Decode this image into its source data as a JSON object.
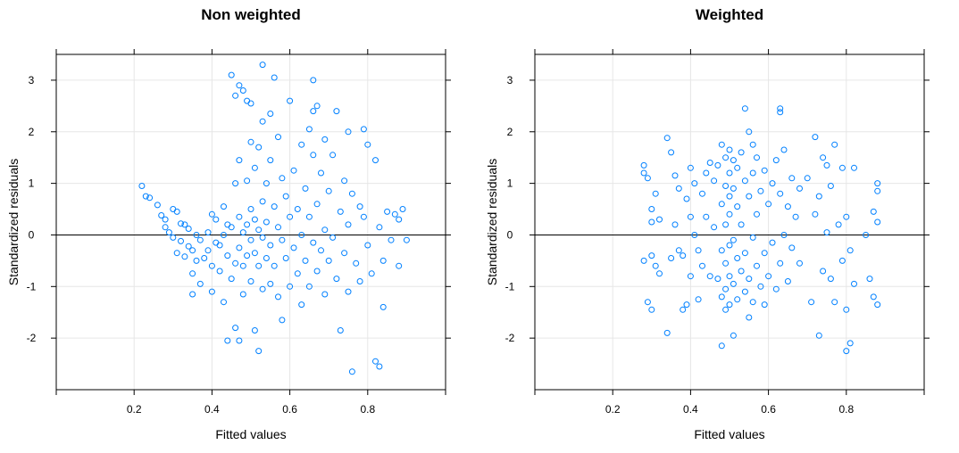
{
  "chart_data": [
    {
      "type": "scatter",
      "title": "Non weighted",
      "xlabel": "Fitted values",
      "ylabel": "Standardized residuals",
      "xlim": [
        0.0,
        1.0
      ],
      "ylim": [
        -3.0,
        3.5
      ],
      "xticks": [
        0.2,
        0.4,
        0.6,
        0.8
      ],
      "yticks": [
        -2,
        -1,
        0,
        1,
        2,
        3
      ],
      "grid": true,
      "reference_line_y": 0,
      "color": "#0080ff",
      "points": [
        [
          0.22,
          0.95
        ],
        [
          0.23,
          0.75
        ],
        [
          0.24,
          0.72
        ],
        [
          0.26,
          0.58
        ],
        [
          0.27,
          0.38
        ],
        [
          0.28,
          0.3
        ],
        [
          0.28,
          0.15
        ],
        [
          0.29,
          0.05
        ],
        [
          0.3,
          0.5
        ],
        [
          0.3,
          -0.05
        ],
        [
          0.31,
          0.45
        ],
        [
          0.31,
          -0.35
        ],
        [
          0.32,
          0.22
        ],
        [
          0.32,
          -0.12
        ],
        [
          0.33,
          0.2
        ],
        [
          0.33,
          -0.42
        ],
        [
          0.34,
          0.12
        ],
        [
          0.34,
          -0.22
        ],
        [
          0.35,
          -0.3
        ],
        [
          0.35,
          -0.75
        ],
        [
          0.35,
          -1.15
        ],
        [
          0.36,
          0.0
        ],
        [
          0.36,
          -0.5
        ],
        [
          0.37,
          -0.1
        ],
        [
          0.37,
          -0.95
        ],
        [
          0.38,
          -0.45
        ],
        [
          0.39,
          0.05
        ],
        [
          0.39,
          -0.3
        ],
        [
          0.4,
          -0.6
        ],
        [
          0.4,
          -1.1
        ],
        [
          0.4,
          0.4
        ],
        [
          0.41,
          0.3
        ],
        [
          0.41,
          -0.15
        ],
        [
          0.42,
          -0.2
        ],
        [
          0.42,
          -0.7
        ],
        [
          0.43,
          0.0
        ],
        [
          0.43,
          0.55
        ],
        [
          0.43,
          -1.3
        ],
        [
          0.44,
          0.2
        ],
        [
          0.44,
          -0.4
        ],
        [
          0.44,
          -2.05
        ],
        [
          0.45,
          3.1
        ],
        [
          0.45,
          0.15
        ],
        [
          0.45,
          -0.85
        ],
        [
          0.46,
          2.7
        ],
        [
          0.46,
          1.0
        ],
        [
          0.46,
          -0.55
        ],
        [
          0.46,
          -1.8
        ],
        [
          0.47,
          2.9
        ],
        [
          0.47,
          1.45
        ],
        [
          0.47,
          0.35
        ],
        [
          0.47,
          -0.25
        ],
        [
          0.47,
          -2.05
        ],
        [
          0.48,
          2.8
        ],
        [
          0.48,
          0.05
        ],
        [
          0.48,
          -0.6
        ],
        [
          0.48,
          -1.15
        ],
        [
          0.49,
          2.6
        ],
        [
          0.49,
          1.05
        ],
        [
          0.49,
          0.2
        ],
        [
          0.49,
          -0.4
        ],
        [
          0.5,
          2.55
        ],
        [
          0.5,
          1.8
        ],
        [
          0.5,
          0.5
        ],
        [
          0.5,
          -0.1
        ],
        [
          0.5,
          -0.9
        ],
        [
          0.51,
          1.3
        ],
        [
          0.51,
          0.3
        ],
        [
          0.51,
          -0.35
        ],
        [
          0.51,
          -1.85
        ],
        [
          0.52,
          1.7
        ],
        [
          0.52,
          0.1
        ],
        [
          0.52,
          -0.6
        ],
        [
          0.52,
          -2.25
        ],
        [
          0.53,
          3.3
        ],
        [
          0.53,
          2.2
        ],
        [
          0.53,
          0.65
        ],
        [
          0.53,
          -0.05
        ],
        [
          0.53,
          -1.05
        ],
        [
          0.54,
          1.0
        ],
        [
          0.54,
          0.25
        ],
        [
          0.54,
          -0.45
        ],
        [
          0.55,
          2.35
        ],
        [
          0.55,
          1.45
        ],
        [
          0.55,
          -0.2
        ],
        [
          0.55,
          -0.95
        ],
        [
          0.56,
          3.05
        ],
        [
          0.56,
          0.55
        ],
        [
          0.56,
          -0.6
        ],
        [
          0.57,
          1.9
        ],
        [
          0.57,
          0.15
        ],
        [
          0.57,
          -1.2
        ],
        [
          0.58,
          1.1
        ],
        [
          0.58,
          -0.1
        ],
        [
          0.58,
          -1.65
        ],
        [
          0.59,
          0.75
        ],
        [
          0.59,
          -0.45
        ],
        [
          0.6,
          2.6
        ],
        [
          0.6,
          0.35
        ],
        [
          0.6,
          -1.0
        ],
        [
          0.61,
          1.25
        ],
        [
          0.61,
          -0.25
        ],
        [
          0.62,
          0.5
        ],
        [
          0.62,
          -0.75
        ],
        [
          0.63,
          1.75
        ],
        [
          0.63,
          0.0
        ],
        [
          0.63,
          -1.35
        ],
        [
          0.64,
          0.9
        ],
        [
          0.64,
          -0.5
        ],
        [
          0.65,
          2.05
        ],
        [
          0.65,
          0.35
        ],
        [
          0.65,
          -1.0
        ],
        [
          0.66,
          3.0
        ],
        [
          0.66,
          2.4
        ],
        [
          0.66,
          1.55
        ],
        [
          0.66,
          -0.15
        ],
        [
          0.67,
          2.5
        ],
        [
          0.67,
          0.6
        ],
        [
          0.67,
          -0.7
        ],
        [
          0.68,
          1.2
        ],
        [
          0.68,
          -0.3
        ],
        [
          0.69,
          1.85
        ],
        [
          0.69,
          0.1
        ],
        [
          0.69,
          -1.15
        ],
        [
          0.7,
          0.85
        ],
        [
          0.7,
          -0.5
        ],
        [
          0.71,
          1.55
        ],
        [
          0.71,
          -0.05
        ],
        [
          0.72,
          2.4
        ],
        [
          0.72,
          -0.85
        ],
        [
          0.73,
          -1.85
        ],
        [
          0.73,
          0.45
        ],
        [
          0.74,
          1.05
        ],
        [
          0.74,
          -0.35
        ],
        [
          0.75,
          2.0
        ],
        [
          0.75,
          0.2
        ],
        [
          0.75,
          -1.1
        ],
        [
          0.76,
          -2.65
        ],
        [
          0.76,
          0.8
        ],
        [
          0.77,
          -0.55
        ],
        [
          0.78,
          0.55
        ],
        [
          0.78,
          -0.9
        ],
        [
          0.79,
          2.05
        ],
        [
          0.79,
          0.35
        ],
        [
          0.8,
          1.75
        ],
        [
          0.8,
          -0.2
        ],
        [
          0.81,
          -0.75
        ],
        [
          0.82,
          1.45
        ],
        [
          0.82,
          -2.45
        ],
        [
          0.83,
          -2.55
        ],
        [
          0.83,
          0.15
        ],
        [
          0.84,
          -1.4
        ],
        [
          0.84,
          -0.5
        ],
        [
          0.85,
          0.45
        ],
        [
          0.86,
          -0.1
        ],
        [
          0.87,
          0.4
        ],
        [
          0.88,
          0.3
        ],
        [
          0.88,
          -0.6
        ],
        [
          0.89,
          0.5
        ],
        [
          0.9,
          -0.1
        ]
      ]
    },
    {
      "type": "scatter",
      "title": "Weighted",
      "xlabel": "Fitted values",
      "ylabel": "Standardized residuals",
      "xlim": [
        0.0,
        1.0
      ],
      "ylim": [
        -3.0,
        3.5
      ],
      "xticks": [
        0.2,
        0.4,
        0.6,
        0.8
      ],
      "yticks": [
        -2,
        -1,
        0,
        1,
        2,
        3
      ],
      "grid": true,
      "reference_line_y": 0,
      "color": "#0080ff",
      "points": [
        [
          0.28,
          1.35
        ],
        [
          0.28,
          1.2
        ],
        [
          0.28,
          -0.5
        ],
        [
          0.29,
          1.1
        ],
        [
          0.29,
          -1.3
        ],
        [
          0.3,
          0.5
        ],
        [
          0.3,
          0.25
        ],
        [
          0.3,
          -0.4
        ],
        [
          0.3,
          -1.45
        ],
        [
          0.31,
          0.8
        ],
        [
          0.31,
          -0.6
        ],
        [
          0.32,
          0.3
        ],
        [
          0.32,
          -0.75
        ],
        [
          0.34,
          1.88
        ],
        [
          0.34,
          -1.9
        ],
        [
          0.35,
          1.6
        ],
        [
          0.35,
          -0.45
        ],
        [
          0.36,
          1.15
        ],
        [
          0.36,
          0.2
        ],
        [
          0.37,
          0.9
        ],
        [
          0.37,
          -0.3
        ],
        [
          0.38,
          -0.4
        ],
        [
          0.38,
          -1.45
        ],
        [
          0.39,
          0.7
        ],
        [
          0.39,
          -1.35
        ],
        [
          0.4,
          1.3
        ],
        [
          0.4,
          0.35
        ],
        [
          0.4,
          -0.8
        ],
        [
          0.41,
          1.0
        ],
        [
          0.41,
          0.0
        ],
        [
          0.42,
          -0.3
        ],
        [
          0.42,
          -1.25
        ],
        [
          0.43,
          0.8
        ],
        [
          0.43,
          -0.6
        ],
        [
          0.44,
          1.2
        ],
        [
          0.44,
          0.35
        ],
        [
          0.45,
          1.4
        ],
        [
          0.45,
          -0.8
        ],
        [
          0.46,
          1.05
        ],
        [
          0.46,
          0.15
        ],
        [
          0.47,
          1.35
        ],
        [
          0.47,
          -0.85
        ],
        [
          0.48,
          1.75
        ],
        [
          0.48,
          0.6
        ],
        [
          0.48,
          -0.3
        ],
        [
          0.48,
          -1.2
        ],
        [
          0.48,
          -2.15
        ],
        [
          0.49,
          1.5
        ],
        [
          0.49,
          0.95
        ],
        [
          0.49,
          0.2
        ],
        [
          0.49,
          -0.55
        ],
        [
          0.49,
          -1.05
        ],
        [
          0.49,
          -1.45
        ],
        [
          0.5,
          1.65
        ],
        [
          0.5,
          1.2
        ],
        [
          0.5,
          0.75
        ],
        [
          0.5,
          0.4
        ],
        [
          0.5,
          -0.2
        ],
        [
          0.5,
          -0.8
        ],
        [
          0.5,
          -1.35
        ],
        [
          0.51,
          1.45
        ],
        [
          0.51,
          0.9
        ],
        [
          0.51,
          -0.1
        ],
        [
          0.51,
          -0.95
        ],
        [
          0.51,
          -1.95
        ],
        [
          0.52,
          1.3
        ],
        [
          0.52,
          0.55
        ],
        [
          0.52,
          -0.45
        ],
        [
          0.52,
          -1.25
        ],
        [
          0.53,
          1.6
        ],
        [
          0.53,
          0.2
        ],
        [
          0.53,
          -0.7
        ],
        [
          0.54,
          2.45
        ],
        [
          0.54,
          1.05
        ],
        [
          0.54,
          -0.35
        ],
        [
          0.54,
          -1.1
        ],
        [
          0.55,
          2.0
        ],
        [
          0.55,
          0.75
        ],
        [
          0.55,
          -0.85
        ],
        [
          0.55,
          -1.6
        ],
        [
          0.56,
          1.75
        ],
        [
          0.56,
          1.2
        ],
        [
          0.56,
          -0.05
        ],
        [
          0.56,
          -1.3
        ],
        [
          0.57,
          1.5
        ],
        [
          0.57,
          0.4
        ],
        [
          0.57,
          -0.6
        ],
        [
          0.58,
          0.85
        ],
        [
          0.58,
          -1.0
        ],
        [
          0.59,
          1.25
        ],
        [
          0.59,
          -0.35
        ],
        [
          0.59,
          -1.35
        ],
        [
          0.6,
          0.6
        ],
        [
          0.6,
          -0.8
        ],
        [
          0.61,
          1.0
        ],
        [
          0.61,
          -0.15
        ],
        [
          0.62,
          1.45
        ],
        [
          0.62,
          -1.05
        ],
        [
          0.63,
          2.45
        ],
        [
          0.63,
          2.38
        ],
        [
          0.63,
          0.8
        ],
        [
          0.63,
          -0.55
        ],
        [
          0.64,
          1.65
        ],
        [
          0.64,
          0.0
        ],
        [
          0.65,
          0.55
        ],
        [
          0.65,
          -0.9
        ],
        [
          0.66,
          1.1
        ],
        [
          0.66,
          -0.25
        ],
        [
          0.67,
          0.35
        ],
        [
          0.68,
          0.9
        ],
        [
          0.68,
          -0.55
        ],
        [
          0.7,
          1.1
        ],
        [
          0.71,
          -1.3
        ],
        [
          0.72,
          1.9
        ],
        [
          0.72,
          0.4
        ],
        [
          0.73,
          -1.95
        ],
        [
          0.73,
          0.75
        ],
        [
          0.74,
          1.5
        ],
        [
          0.74,
          -0.7
        ],
        [
          0.75,
          1.35
        ],
        [
          0.75,
          0.05
        ],
        [
          0.76,
          0.95
        ],
        [
          0.76,
          -0.85
        ],
        [
          0.77,
          -1.3
        ],
        [
          0.77,
          1.75
        ],
        [
          0.78,
          0.2
        ],
        [
          0.79,
          -0.5
        ],
        [
          0.79,
          1.3
        ],
        [
          0.8,
          0.35
        ],
        [
          0.8,
          -1.45
        ],
        [
          0.8,
          -2.25
        ],
        [
          0.81,
          -2.1
        ],
        [
          0.81,
          -0.3
        ],
        [
          0.82,
          1.3
        ],
        [
          0.82,
          -0.95
        ],
        [
          0.85,
          0.0
        ],
        [
          0.86,
          -0.85
        ],
        [
          0.87,
          0.45
        ],
        [
          0.87,
          -1.2
        ],
        [
          0.88,
          1.0
        ],
        [
          0.88,
          0.85
        ],
        [
          0.88,
          0.25
        ],
        [
          0.88,
          -1.35
        ]
      ]
    }
  ]
}
